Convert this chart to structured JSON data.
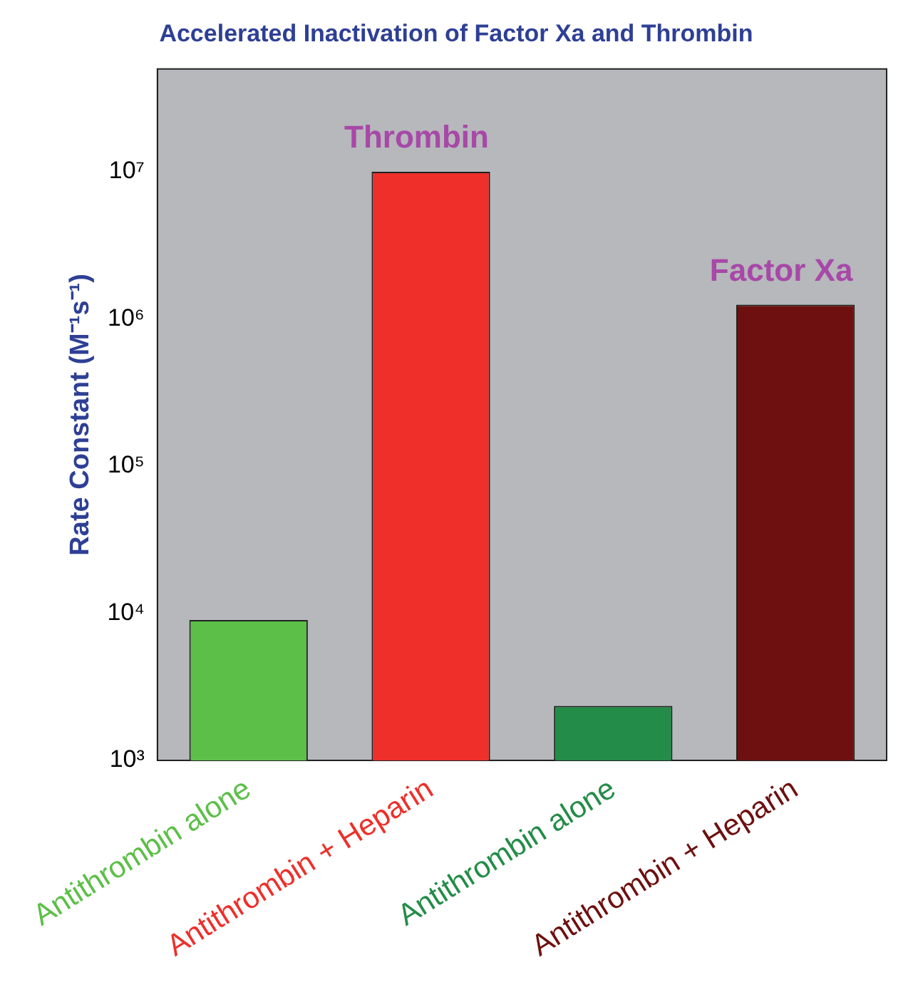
{
  "chart_data": {
    "type": "bar",
    "title": "Accelerated Inactivation of Factor Xa and Thrombin",
    "ylabel": "Rate Constant (M⁻¹s⁻¹)",
    "categories": [
      "Antithrombin alone",
      "Antithrombin + Heparin",
      "Antithrombin alone",
      "Antithrombin + Heparin"
    ],
    "values": [
      9000,
      10000000,
      2350,
      1250000
    ],
    "colors": [
      "#5cbf48",
      "#ee2f2a",
      "#238c48",
      "#6e1010"
    ],
    "log": true,
    "ylim": [
      1000,
      50000000
    ],
    "yticks": [
      {
        "value": 1000,
        "label": "10³"
      },
      {
        "value": 10000,
        "label": "10⁴"
      },
      {
        "value": 100000,
        "label": "10⁵"
      },
      {
        "value": 1000000,
        "label": "10⁶"
      },
      {
        "value": 10000000,
        "label": "10⁷"
      }
    ],
    "annotations": [
      "Thrombin",
      "Factor Xa"
    ],
    "grid": false,
    "legend": false
  }
}
